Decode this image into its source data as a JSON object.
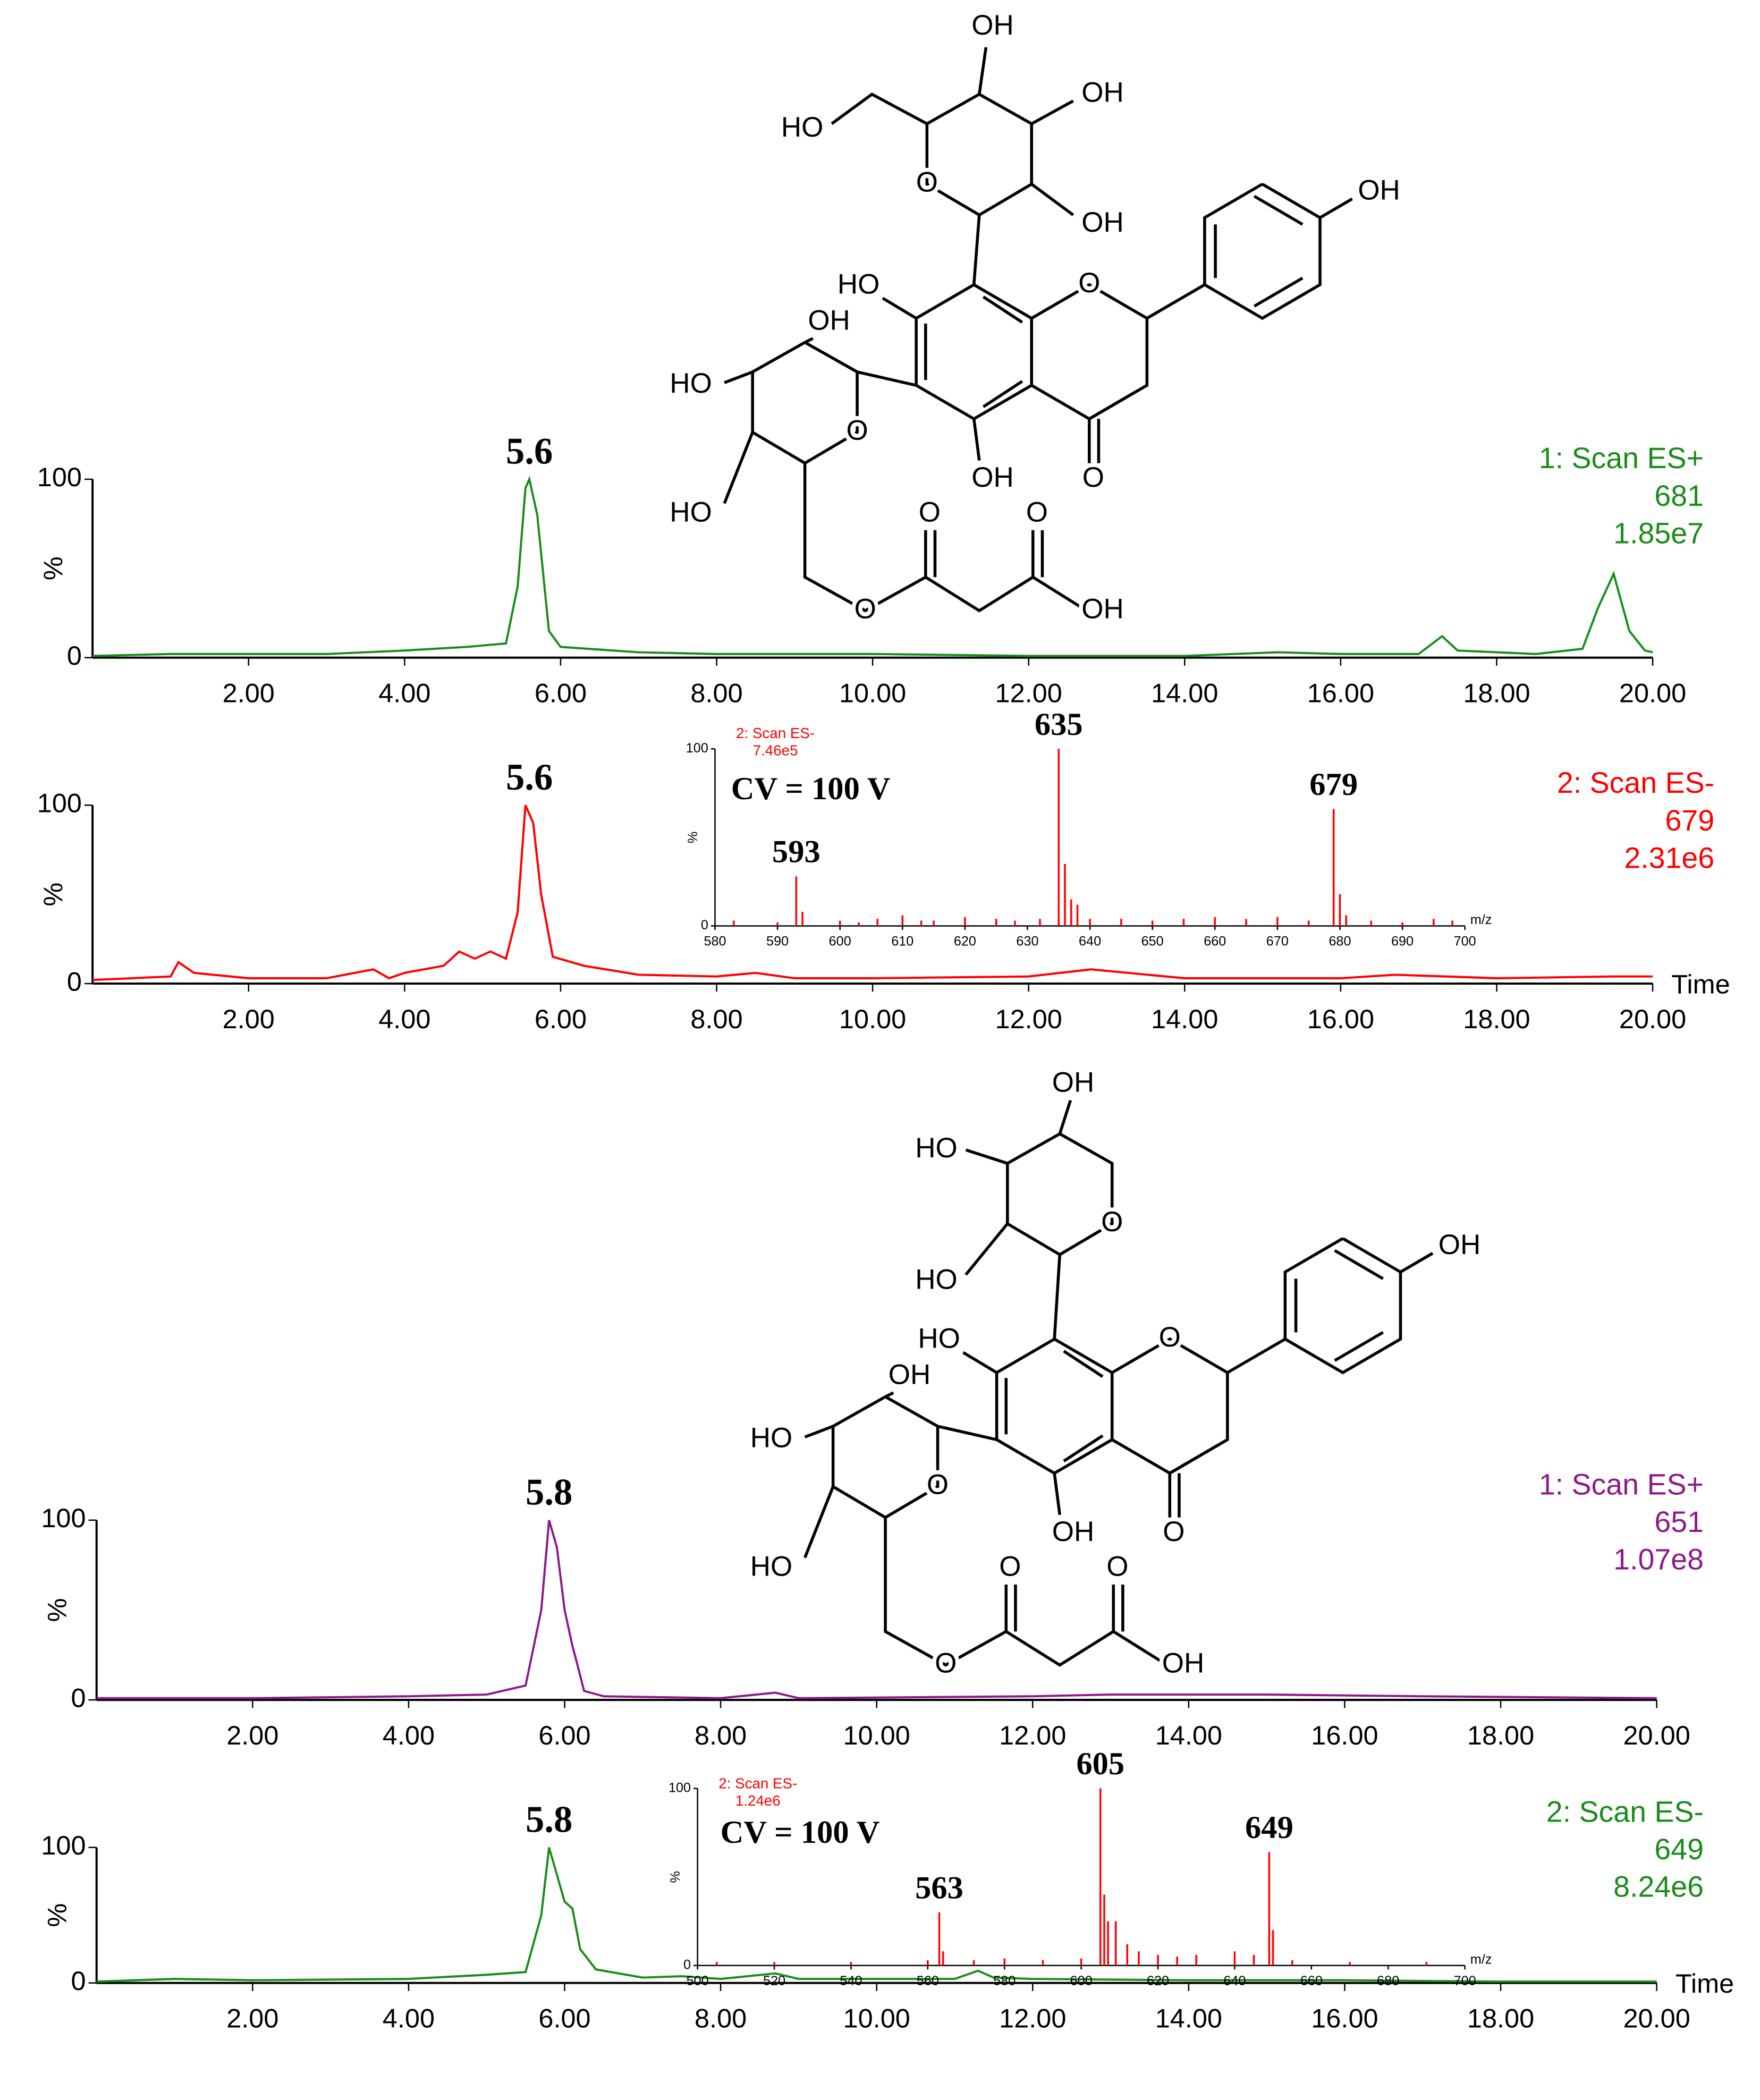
{
  "chart_data": [
    {
      "type": "line",
      "color": "#1a8c1a",
      "legend_lines": [
        "1: Scan ES+",
        "681",
        "1.85e7"
      ],
      "peak_label": 5.6,
      "ylabel": "%",
      "x": [
        0,
        1,
        2,
        3,
        4,
        4.8,
        5.3,
        5.45,
        5.55,
        5.6,
        5.7,
        5.85,
        6,
        7,
        8,
        10,
        12,
        14,
        15.2,
        16,
        17,
        17.3,
        17.5,
        18.5,
        19.1,
        19.3,
        19.5,
        19.7,
        19.9,
        20
      ],
      "values": [
        1,
        2,
        2,
        2,
        4,
        6,
        8,
        40,
        95,
        100,
        80,
        15,
        6,
        3,
        2,
        2,
        1,
        1,
        3,
        2,
        2,
        12,
        4,
        2,
        5,
        28,
        47,
        15,
        4,
        3
      ],
      "xlim": [
        0,
        20
      ],
      "ylim": [
        0,
        100
      ],
      "yticks": [
        0,
        100
      ],
      "xticks": [
        {
          "value": 2,
          "label": "2.00"
        },
        {
          "value": 4,
          "label": "4.00"
        },
        {
          "value": 6,
          "label": "6.00"
        },
        {
          "value": 8,
          "label": "8.00"
        },
        {
          "value": 10,
          "label": "10.00"
        },
        {
          "value": 12,
          "label": "12.00"
        },
        {
          "value": 14,
          "label": "14.00"
        },
        {
          "value": 16,
          "label": "16.00"
        },
        {
          "value": 18,
          "label": "18.00"
        },
        {
          "value": 20,
          "label": "20.00"
        }
      ]
    },
    {
      "type": "line",
      "color": "#ff0000",
      "legend_lines": [
        "2: Scan ES-",
        "679",
        "2.31e6"
      ],
      "peak_label": 5.6,
      "ylabel": "%",
      "xlabel": "Time",
      "x": [
        0,
        1,
        1.1,
        1.3,
        2,
        3,
        3.6,
        3.8,
        4,
        4.5,
        4.7,
        4.9,
        5.1,
        5.3,
        5.45,
        5.55,
        5.65,
        5.75,
        5.9,
        6.3,
        7,
        8,
        8.5,
        9,
        10,
        12,
        12.8,
        14,
        16,
        16.7,
        18,
        19.5,
        20
      ],
      "values": [
        2,
        4,
        12,
        6,
        3,
        3,
        8,
        3,
        6,
        10,
        18,
        14,
        18,
        14,
        40,
        100,
        90,
        50,
        15,
        10,
        5,
        4,
        6,
        3,
        3,
        4,
        8,
        3,
        3,
        5,
        3,
        4,
        4
      ],
      "xlim": [
        0,
        20
      ],
      "ylim": [
        0,
        100
      ],
      "yticks": [
        0,
        100
      ],
      "xticks": [
        {
          "value": 2,
          "label": "2.00"
        },
        {
          "value": 4,
          "label": "4.00"
        },
        {
          "value": 6,
          "label": "6.00"
        },
        {
          "value": 8,
          "label": "8.00"
        },
        {
          "value": 10,
          "label": "10.00"
        },
        {
          "value": 12,
          "label": "12.00"
        },
        {
          "value": 14,
          "label": "14.00"
        },
        {
          "value": 16,
          "label": "16.00"
        },
        {
          "value": 18,
          "label": "18.00"
        },
        {
          "value": 20,
          "label": "20.00"
        }
      ]
    },
    {
      "type": "bar",
      "color": "#ff0000",
      "legend_lines": [
        "2: Scan ES-",
        "7.46e5"
      ],
      "note": "CV = 100 V",
      "ylabel": "%",
      "xlabel": "m/z",
      "peak_labels": [
        593,
        635,
        679
      ],
      "x": [
        583,
        590,
        593,
        594,
        600,
        603,
        606,
        610,
        613,
        615,
        620,
        625,
        628,
        632,
        635,
        636,
        637,
        638,
        640,
        645,
        650,
        655,
        660,
        665,
        670,
        675,
        679,
        680,
        681,
        685,
        690,
        695,
        698
      ],
      "values": [
        3,
        2,
        28,
        8,
        3,
        2,
        4,
        6,
        3,
        3,
        5,
        4,
        3,
        4,
        100,
        35,
        15,
        12,
        4,
        4,
        3,
        4,
        5,
        4,
        5,
        3,
        66,
        18,
        6,
        3,
        2,
        4,
        3
      ],
      "xlim": [
        580,
        700
      ],
      "ylim": [
        0,
        100
      ],
      "yticks": [
        0,
        100
      ],
      "xticks": [
        580,
        590,
        600,
        610,
        620,
        630,
        640,
        650,
        660,
        670,
        680,
        690,
        700
      ]
    },
    {
      "type": "line",
      "color": "#8b1a8b",
      "legend_lines": [
        "1: Scan ES+",
        "651",
        "1.07e8"
      ],
      "peak_label": 5.8,
      "ylabel": "%",
      "x": [
        0,
        2,
        4,
        5,
        5.5,
        5.7,
        5.8,
        5.9,
        6,
        6.1,
        6.15,
        6.25,
        6.5,
        8,
        8.7,
        9,
        12,
        13,
        15,
        17,
        20
      ],
      "values": [
        1,
        1,
        2,
        3,
        8,
        50,
        100,
        85,
        50,
        30,
        22,
        5,
        2,
        1,
        4,
        1,
        2,
        3,
        3,
        2,
        1
      ],
      "xlim": [
        0,
        20
      ],
      "ylim": [
        0,
        100
      ],
      "yticks": [
        0,
        100
      ],
      "xticks": [
        {
          "value": 2,
          "label": "2.00"
        },
        {
          "value": 4,
          "label": "4.00"
        },
        {
          "value": 6,
          "label": "6.00"
        },
        {
          "value": 8,
          "label": "8.00"
        },
        {
          "value": 10,
          "label": "10.00"
        },
        {
          "value": 12,
          "label": "12.00"
        },
        {
          "value": 14,
          "label": "14.00"
        },
        {
          "value": 16,
          "label": "16.00"
        },
        {
          "value": 18,
          "label": "18.00"
        },
        {
          "value": 20,
          "label": "20.00"
        }
      ]
    },
    {
      "type": "line",
      "color": "#1a8c1a",
      "legend_lines": [
        "2: Scan ES-",
        "649",
        "8.24e6"
      ],
      "peak_label": 5.8,
      "ylabel": "%",
      "xlabel": "Time",
      "x": [
        0,
        1,
        2,
        4,
        5,
        5.5,
        5.7,
        5.8,
        5.9,
        6,
        6.1,
        6.2,
        6.4,
        7,
        7.5,
        8,
        8.7,
        9,
        11,
        11.3,
        11.5,
        12,
        14,
        16,
        18,
        20
      ],
      "values": [
        1,
        3,
        2,
        3,
        6,
        8,
        50,
        100,
        80,
        60,
        55,
        25,
        10,
        4,
        5,
        3,
        7,
        3,
        3,
        9,
        4,
        3,
        2,
        2,
        1,
        1
      ],
      "xlim": [
        0,
        20
      ],
      "ylim": [
        0,
        100
      ],
      "yticks": [
        0,
        100
      ],
      "xticks": [
        {
          "value": 2,
          "label": "2.00"
        },
        {
          "value": 4,
          "label": "4.00"
        },
        {
          "value": 6,
          "label": "6.00"
        },
        {
          "value": 8,
          "label": "8.00"
        },
        {
          "value": 10,
          "label": "10.00"
        },
        {
          "value": 12,
          "label": "12.00"
        },
        {
          "value": 14,
          "label": "14.00"
        },
        {
          "value": 16,
          "label": "16.00"
        },
        {
          "value": 18,
          "label": "18.00"
        },
        {
          "value": 20,
          "label": "20.00"
        }
      ]
    },
    {
      "type": "bar",
      "color": "#ff0000",
      "legend_lines": [
        "2: Scan ES-",
        "1.24e6"
      ],
      "note": "CV = 100 V",
      "ylabel": "%",
      "xlabel": "m/z",
      "peak_labels": [
        563,
        605,
        649
      ],
      "x": [
        505,
        520,
        540,
        560,
        563,
        564,
        572,
        580,
        590,
        600,
        605,
        606,
        607,
        609,
        612,
        615,
        620,
        625,
        630,
        640,
        645,
        649,
        650,
        655,
        670,
        690
      ],
      "values": [
        2,
        2,
        2,
        3,
        30,
        8,
        3,
        4,
        3,
        4,
        100,
        40,
        25,
        25,
        12,
        8,
        6,
        5,
        6,
        8,
        6,
        64,
        20,
        3,
        2,
        2
      ],
      "xlim": [
        500,
        700
      ],
      "ylim": [
        0,
        100
      ],
      "yticks": [
        0,
        100
      ],
      "xticks": [
        500,
        520,
        540,
        560,
        580,
        600,
        620,
        640,
        660,
        680,
        700
      ]
    }
  ],
  "structures": [
    {
      "labels": [
        "HO",
        "OH",
        "O",
        "O",
        "OH",
        "OH",
        "HO",
        "HO",
        "O",
        "O",
        "O",
        "O",
        "OH",
        "OH",
        "OH",
        "OH",
        "O",
        "HO"
      ]
    },
    {
      "labels": [
        "HO",
        "OH",
        "O",
        "O",
        "OH",
        "OH",
        "HO",
        "HO",
        "O",
        "O",
        "O",
        "O",
        "OH",
        "OH",
        "HO",
        "HO",
        "O"
      ]
    }
  ]
}
